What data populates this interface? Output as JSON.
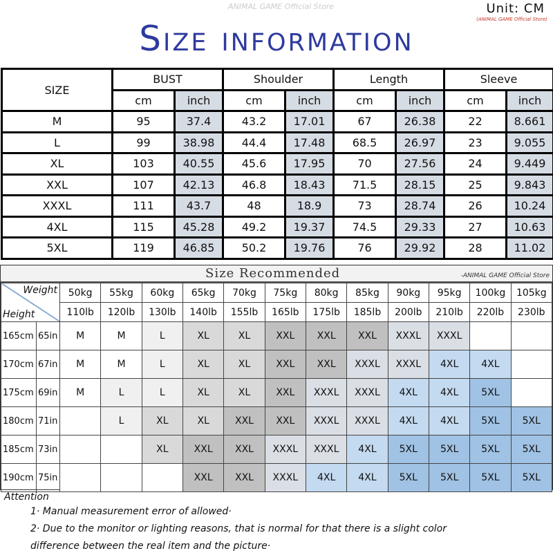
{
  "header": {
    "unit": "Unit: CM",
    "store_note": "(ANIMAL GAME Official Store)",
    "watermark": "ANIMAL GAME Official Store",
    "title": "Size information"
  },
  "size_table": {
    "size_label": "SIZE",
    "groups": [
      "BUST",
      "Shoulder",
      "Length",
      "Sleeve"
    ],
    "sub": [
      "cm",
      "inch"
    ],
    "rows": [
      [
        "M",
        "95",
        "37.4",
        "43.2",
        "17.01",
        "67",
        "26.38",
        "22",
        "8.661"
      ],
      [
        "L",
        "99",
        "38.98",
        "44.4",
        "17.48",
        "68.5",
        "26.97",
        "23",
        "9.055"
      ],
      [
        "XL",
        "103",
        "40.55",
        "45.6",
        "17.95",
        "70",
        "27.56",
        "24",
        "9.449"
      ],
      [
        "XXL",
        "107",
        "42.13",
        "46.8",
        "18.43",
        "71.5",
        "28.15",
        "25",
        "9.843"
      ],
      [
        "XXXL",
        "111",
        "43.7",
        "48",
        "18.9",
        "73",
        "28.74",
        "26",
        "10.24"
      ],
      [
        "4XL",
        "115",
        "45.28",
        "49.2",
        "19.37",
        "74.5",
        "29.33",
        "27",
        "10.63"
      ],
      [
        "5XL",
        "119",
        "46.85",
        "50.2",
        "19.76",
        "76",
        "29.92",
        "28",
        "11.02"
      ]
    ],
    "inch_color": "#d6dce4"
  },
  "recommend": {
    "title": "Size Recommended",
    "store": "-ANIMAL GAME Official Store",
    "weight_label": "Weight",
    "height_label": "Height",
    "kg": [
      "50kg",
      "55kg",
      "60kg",
      "65kg",
      "70kg",
      "75kg",
      "80kg",
      "85kg",
      "90kg",
      "95kg",
      "100kg",
      "105kg"
    ],
    "lb": [
      "110lb",
      "120lb",
      "130lb",
      "140lb",
      "155lb",
      "165lb",
      "175lb",
      "185lb",
      "200lb",
      "210lb",
      "220lb",
      "230lb"
    ],
    "rows": [
      {
        "cm": "165cm",
        "in": "65in",
        "sizes": [
          "M",
          "M",
          "L",
          "XL",
          "XL",
          "XXL",
          "XXL",
          "XXL",
          "XXXL",
          "XXXL",
          "",
          ""
        ]
      },
      {
        "cm": "170cm",
        "in": "67in",
        "sizes": [
          "M",
          "M",
          "L",
          "XL",
          "XL",
          "XXL",
          "XXL",
          "XXXL",
          "XXXL",
          "4XL",
          "4XL",
          ""
        ]
      },
      {
        "cm": "175cm",
        "in": "69in",
        "sizes": [
          "M",
          "L",
          "L",
          "XL",
          "XL",
          "XXL",
          "XXXL",
          "XXXL",
          "4XL",
          "4XL",
          "5XL",
          ""
        ]
      },
      {
        "cm": "180cm",
        "in": "71in",
        "sizes": [
          "",
          "L",
          "XL",
          "XL",
          "XXL",
          "XXL",
          "XXXL",
          "XXXL",
          "4XL",
          "4XL",
          "5XL",
          "5XL"
        ]
      },
      {
        "cm": "185cm",
        "in": "73in",
        "sizes": [
          "",
          "",
          "XL",
          "XXL",
          "XXL",
          "XXXL",
          "XXXL",
          "4XL",
          "5XL",
          "5XL",
          "5XL",
          "5XL"
        ]
      },
      {
        "cm": "190cm",
        "in": "75in",
        "sizes": [
          "",
          "",
          "",
          "XXL",
          "XXL",
          "XXXL",
          "4XL",
          "4XL",
          "5XL",
          "5XL",
          "5XL",
          "5XL"
        ]
      }
    ],
    "size_colors": {
      "M": "#ffffff",
      "L": "#f0f0f0",
      "XL": "#d9d9d9",
      "XXL": "#c0c0c0",
      "XXXL": "#dadee5",
      "4XL": "#c3daf0",
      "5XL": "#a0c2e4",
      "": "#ffffff"
    }
  },
  "attention": {
    "title": "Attention",
    "lines": [
      "1· Manual measurement error of allowed·",
      "2·  Due to the monitor or lighting reasons, that is normal for that there is a slight color",
      "difference between the real item and the picture·"
    ]
  }
}
